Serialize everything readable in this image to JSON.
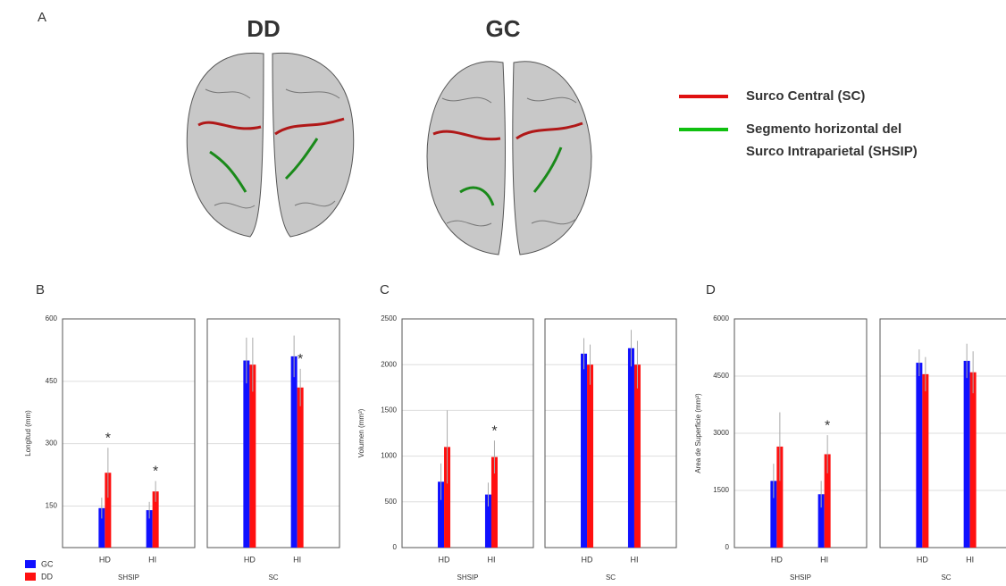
{
  "panel_a": {
    "label": "A",
    "titles": [
      "DD",
      "GC"
    ],
    "legend": [
      {
        "color": "#e01010",
        "lines": [
          "Surco Central (SC)"
        ]
      },
      {
        "color": "#10c010",
        "lines": [
          "Segmento horizontal del",
          "Surco Intraparietal  (SHSIP)"
        ]
      }
    ]
  },
  "legend": [
    {
      "name": "GC",
      "color": "#1010ff"
    },
    {
      "name": "DD",
      "color": "#ff1010"
    }
  ],
  "chart_data": [
    {
      "type": "bar",
      "label": "B",
      "ylabel": "Longitud (mm)",
      "ylim": [
        50,
        600
      ],
      "yticks": [
        150,
        300,
        450,
        600
      ],
      "grid": true,
      "panels": [
        {
          "xlabel": "SHSIP",
          "categories": [
            "HD",
            "HI"
          ],
          "series": [
            {
              "values": [
                145,
                140
              ],
              "errors": [
                25,
                20
              ]
            },
            {
              "values": [
                230,
                185
              ],
              "errors": [
                60,
                25
              ]
            }
          ],
          "annotations": [
            {
              "category": 0,
              "text": "*"
            },
            {
              "category": 1,
              "text": "*"
            }
          ]
        },
        {
          "xlabel": "SC",
          "categories": [
            "HD",
            "HI"
          ],
          "series": [
            {
              "values": [
                500,
                510
              ],
              "errors": [
                55,
                50
              ]
            },
            {
              "values": [
                490,
                435
              ],
              "errors": [
                65,
                45
              ]
            }
          ],
          "annotations": [
            {
              "category": 1,
              "text": "*"
            }
          ]
        }
      ]
    },
    {
      "type": "bar",
      "label": "C",
      "ylabel": "Volumen (mm³)",
      "ylim": [
        0,
        2500
      ],
      "yticks": [
        0,
        500,
        1000,
        1500,
        2000,
        2500
      ],
      "grid": true,
      "panels": [
        {
          "xlabel": "SHSIP",
          "categories": [
            "HD",
            "HI"
          ],
          "series": [
            {
              "values": [
                720,
                580
              ],
              "errors": [
                200,
                130
              ]
            },
            {
              "values": [
                1100,
                990
              ],
              "errors": [
                400,
                180
              ]
            }
          ],
          "annotations": [
            {
              "category": 1,
              "text": "*"
            }
          ]
        },
        {
          "xlabel": "SC",
          "categories": [
            "HD",
            "HI"
          ],
          "series": [
            {
              "values": [
                2120,
                2180
              ],
              "errors": [
                170,
                200
              ]
            },
            {
              "values": [
                2000,
                2000
              ],
              "errors": [
                220,
                260
              ]
            }
          ],
          "annotations": []
        }
      ]
    },
    {
      "type": "bar",
      "label": "D",
      "ylabel": "Area de Superficie (mm²)",
      "ylim": [
        0,
        6000
      ],
      "yticks": [
        0,
        1500,
        3000,
        4500,
        6000
      ],
      "grid": true,
      "panels": [
        {
          "xlabel": "SHSIP",
          "categories": [
            "HD",
            "HI"
          ],
          "series": [
            {
              "values": [
                1750,
                1400
              ],
              "errors": [
                450,
                350
              ]
            },
            {
              "values": [
                2650,
                2450
              ],
              "errors": [
                900,
                500
              ]
            }
          ],
          "annotations": [
            {
              "category": 1,
              "text": "*"
            }
          ]
        },
        {
          "xlabel": "SC",
          "categories": [
            "HD",
            "HI"
          ],
          "series": [
            {
              "values": [
                4850,
                4900
              ],
              "errors": [
                350,
                450
              ]
            },
            {
              "values": [
                4550,
                4600
              ],
              "errors": [
                450,
                550
              ]
            }
          ],
          "annotations": []
        }
      ]
    }
  ]
}
